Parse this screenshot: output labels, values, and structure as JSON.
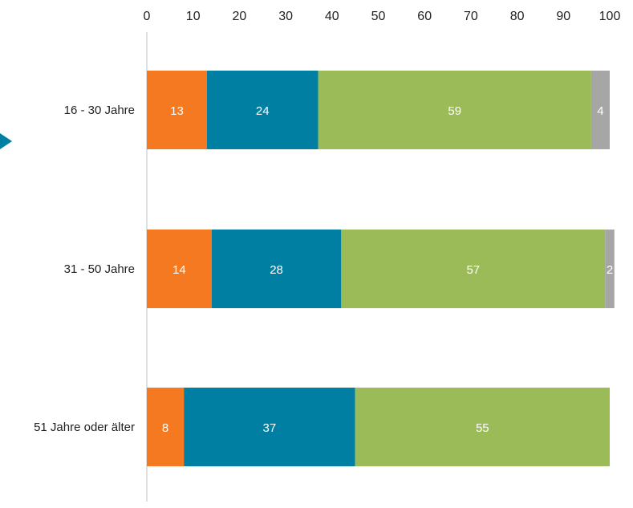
{
  "chart_data": {
    "type": "bar",
    "orientation": "horizontal",
    "stacked": true,
    "categories": [
      "16 - 30 Jahre",
      "31 - 50 Jahre",
      "51 Jahre oder älter"
    ],
    "series": [
      {
        "values": [
          13,
          14,
          8
        ],
        "color": "#F47920"
      },
      {
        "values": [
          24,
          28,
          37
        ],
        "color": "#007FA3"
      },
      {
        "values": [
          59,
          57,
          55
        ],
        "color": "#9BBB59"
      },
      {
        "values": [
          4,
          2,
          0
        ],
        "color": "#A6A6A6"
      }
    ],
    "xlim": [
      0,
      100
    ],
    "xticks": [
      0,
      10,
      20,
      30,
      40,
      50,
      60,
      70,
      80,
      90,
      100
    ],
    "x_axis_position": "top",
    "grid": false,
    "legend": "none",
    "marker_color": "#007FA3"
  }
}
